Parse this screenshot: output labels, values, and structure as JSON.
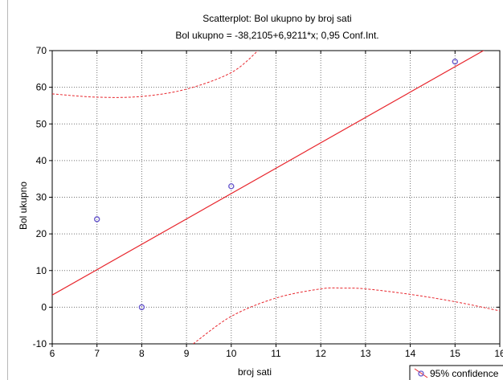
{
  "chart_data": {
    "type": "scatter",
    "title": "Scatterplot: Bol ukupno by broj sati",
    "subtitle": "Bol ukupno = -38,2105+6,9211*x; 0,95 Conf.Int.",
    "xlabel": "broj sati",
    "ylabel": "Bol ukupno",
    "xlim": [
      6,
      16
    ],
    "ylim": [
      -10,
      70
    ],
    "x_ticks": [
      "6",
      "7",
      "8",
      "9",
      "10",
      "11",
      "12",
      "13",
      "14",
      "15",
      "16"
    ],
    "y_ticks": [
      "-10",
      "0",
      "10",
      "20",
      "30",
      "40",
      "50",
      "60",
      "70"
    ],
    "points": [
      {
        "x": 7,
        "y": 24
      },
      {
        "x": 8,
        "y": 0
      },
      {
        "x": 10,
        "y": 33
      },
      {
        "x": 15,
        "y": 67
      }
    ],
    "regression": {
      "intercept": -38.2105,
      "slope": 6.9211
    },
    "confidence_band": {
      "upper": [
        [
          6,
          58.2
        ],
        [
          7,
          57.3
        ],
        [
          8,
          57.5
        ],
        [
          9,
          59.5
        ],
        [
          10,
          64.0
        ],
        [
          10.6,
          70.0
        ]
      ],
      "lower": [
        [
          9.15,
          -10.0
        ],
        [
          10,
          -2.5
        ],
        [
          11,
          2.5
        ],
        [
          12,
          5.0
        ],
        [
          12.5,
          5.2
        ],
        [
          13,
          5.0
        ],
        [
          14,
          3.5
        ],
        [
          15,
          1.5
        ],
        [
          16,
          -1.0
        ]
      ]
    },
    "legend": [
      {
        "label": "95% confidence",
        "position": "bottom-right"
      }
    ],
    "grid": true,
    "colors": {
      "line": "#e8262d",
      "points": "#6a5acd",
      "grid": "#000000"
    }
  }
}
